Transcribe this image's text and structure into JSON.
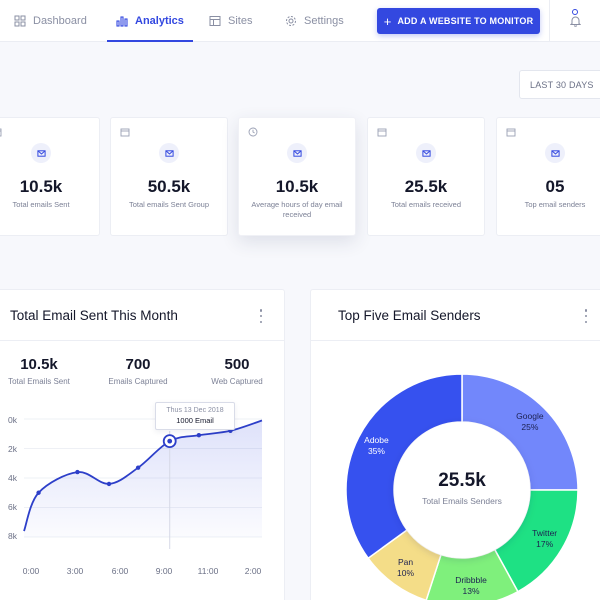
{
  "nav": {
    "items": [
      {
        "label": "Dashboard",
        "icon": "dashboard-icon"
      },
      {
        "label": "Analytics",
        "icon": "analytics-icon",
        "active": true
      },
      {
        "label": "Sites",
        "icon": "sites-icon"
      },
      {
        "label": "Settings",
        "icon": "settings-icon"
      }
    ],
    "add_button": "ADD A WEBSITE TO MONITOR",
    "accent": "#3348e0"
  },
  "filter": {
    "date_range": "LAST 30 DAYS"
  },
  "stats": [
    {
      "value": "10.5k",
      "label": "Total emails Sent",
      "icon": "calendar-icon"
    },
    {
      "value": "50.5k",
      "label": "Total emails Sent Group",
      "icon": "calendar-icon"
    },
    {
      "value": "10.5k",
      "label": "Average hours of day email received",
      "icon": "clock-icon"
    },
    {
      "value": "25.5k",
      "label": "Total emails received",
      "icon": "calendar-icon"
    },
    {
      "value": "05",
      "label": "Top email senders",
      "icon": "calendar-icon"
    }
  ],
  "email_panel": {
    "title": "Total Email Sent This Month",
    "metrics": [
      {
        "value": "10.5k",
        "label": "Total Emails Sent"
      },
      {
        "value": "700",
        "label": "Emails Captured"
      },
      {
        "value": "500",
        "label": "Web Captured"
      }
    ],
    "tooltip": {
      "date": "Thus 13 Dec 2018",
      "value": "1000 Email"
    }
  },
  "senders_panel": {
    "title": "Top Five Email Senders",
    "center_value": "25.5k",
    "center_label": "Total Emails Senders"
  },
  "chart_data": [
    {
      "type": "area",
      "title": "Total Email Sent This Month",
      "y_tick_labels": [
        "0k",
        "2k",
        "4k",
        "6k",
        "8k"
      ],
      "x_tick_labels": [
        "0:00",
        "3:00",
        "6:00",
        "9:00",
        "11:00",
        "2:00"
      ],
      "ylim": [
        0,
        8
      ],
      "y_inverted": true,
      "points": [
        {
          "x": 0,
          "y": 7.6
        },
        {
          "x": 0.6,
          "y": 5.0
        },
        {
          "x": 2.2,
          "y": 3.6
        },
        {
          "x": 3.5,
          "y": 4.4
        },
        {
          "x": 4.7,
          "y": 3.3
        },
        {
          "x": 6.0,
          "y": 1.5
        },
        {
          "x": 7.2,
          "y": 1.1
        },
        {
          "x": 8.5,
          "y": 0.8
        },
        {
          "x": 9.8,
          "y": 0.1
        }
      ],
      "highlight_index": 5,
      "color": "#3348e0"
    },
    {
      "type": "pie",
      "title": "Top Five Email Senders",
      "slices": [
        {
          "label": "Google",
          "value": 25,
          "color": "#7287fb"
        },
        {
          "label": "Twitter",
          "value": 17,
          "color": "#1ee184"
        },
        {
          "label": "Dribbble",
          "value": 13,
          "color": "#7ff07c"
        },
        {
          "label": "Pan",
          "value": 10,
          "color": "#f4dd88"
        },
        {
          "label": "Adobe",
          "value": 35,
          "color": "#3651ef"
        }
      ]
    }
  ]
}
